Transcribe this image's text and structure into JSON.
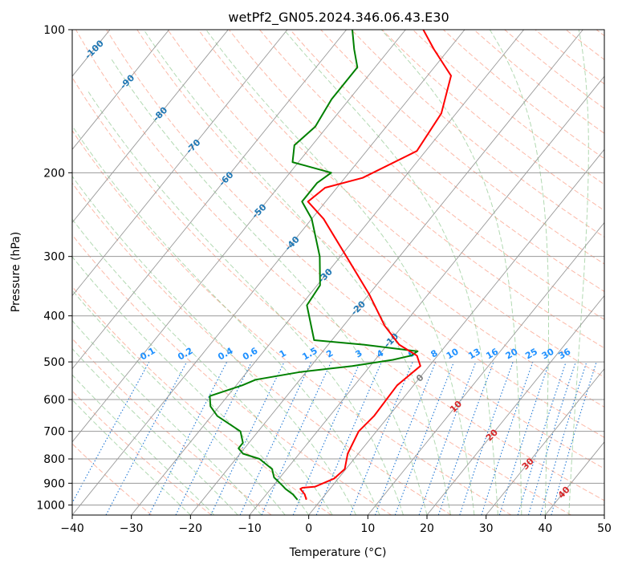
{
  "chart_data": {
    "type": "skew-t",
    "title": "wetPf2_GN05.2024.346.06.43.E30",
    "xlabel": "Temperature (°C)",
    "ylabel": "Pressure (hPa)",
    "xlim": [
      -40,
      50
    ],
    "ylim_hpa": [
      1050,
      100
    ],
    "y_scale": "log",
    "skew_deg_per_decade": 65,
    "grid": true,
    "x_ticks": [
      -40,
      -30,
      -20,
      -10,
      0,
      10,
      20,
      30,
      40,
      50
    ],
    "y_ticks": [
      100,
      200,
      300,
      400,
      500,
      600,
      700,
      800,
      900,
      1000
    ],
    "colors": {
      "temperature": "#ff0000",
      "dewpoint": "#008000",
      "isotherm": "#999999",
      "dry_adiabat": "#fa8060",
      "moist_adiabat": "#7fbf7f",
      "mixing_ratio": "#1f77d4",
      "isotherm_label_neg": "#1f77b4",
      "isotherm_label_pos": "#d62728",
      "mixing_label": "#1e90ff"
    },
    "temperature_profile": {
      "name": "Temperature",
      "pressure": [
        975,
        950,
        925,
        920,
        915,
        880,
        840,
        780,
        700,
        650,
        560,
        510,
        485,
        460,
        420,
        360,
        300,
        250,
        230,
        215,
        205,
        180,
        150,
        125,
        110,
        100
      ],
      "values": [
        -2.5,
        -3.5,
        -5.0,
        -4.8,
        -2.8,
        -0.7,
        -0.2,
        -1.8,
        -3.0,
        -2.5,
        -2.8,
        -1.5,
        -3.5,
        -8.0,
        -13.0,
        -20.0,
        -29.0,
        -38.0,
        -43.0,
        -42.0,
        -37.0,
        -31.5,
        -32.5,
        -36.0,
        -42.5,
        -47.0
      ]
    },
    "dewpoint_profile": {
      "name": "Dewpoint",
      "pressure": [
        975,
        950,
        925,
        910,
        875,
        840,
        800,
        780,
        760,
        740,
        700,
        650,
        620,
        590,
        560,
        545,
        525,
        510,
        495,
        485,
        475,
        460,
        450,
        380,
        345,
        300,
        250,
        230,
        210,
        200,
        190,
        175,
        160,
        140,
        120,
        110,
        100
      ],
      "values": [
        -4.0,
        -5.5,
        -7.5,
        -8.5,
        -11.0,
        -12.5,
        -16.0,
        -19.5,
        -21.0,
        -21.0,
        -23.0,
        -29.0,
        -31.5,
        -33.0,
        -29.0,
        -27.5,
        -21.0,
        -13.0,
        -7.0,
        -4.5,
        -4.0,
        -14.0,
        -23.0,
        -29.0,
        -29.5,
        -33.5,
        -40.0,
        -44.0,
        -44.0,
        -43.0,
        -51.0,
        -53.0,
        -52.0,
        -53.0,
        -53.0,
        -56.0,
        -59.0
      ]
    },
    "isotherm_labels": [
      -100,
      -90,
      -80,
      -70,
      -60,
      -50,
      -40,
      -30,
      -20,
      -10,
      0,
      10,
      20,
      30,
      40
    ],
    "mixing_ratio_labels": [
      "0.1",
      "0.2",
      "0.4",
      "0.6",
      "1",
      "1.5",
      "2",
      "3",
      "4",
      "6",
      "8",
      "10",
      "13",
      "16",
      "20",
      "25",
      "30",
      "36"
    ]
  }
}
